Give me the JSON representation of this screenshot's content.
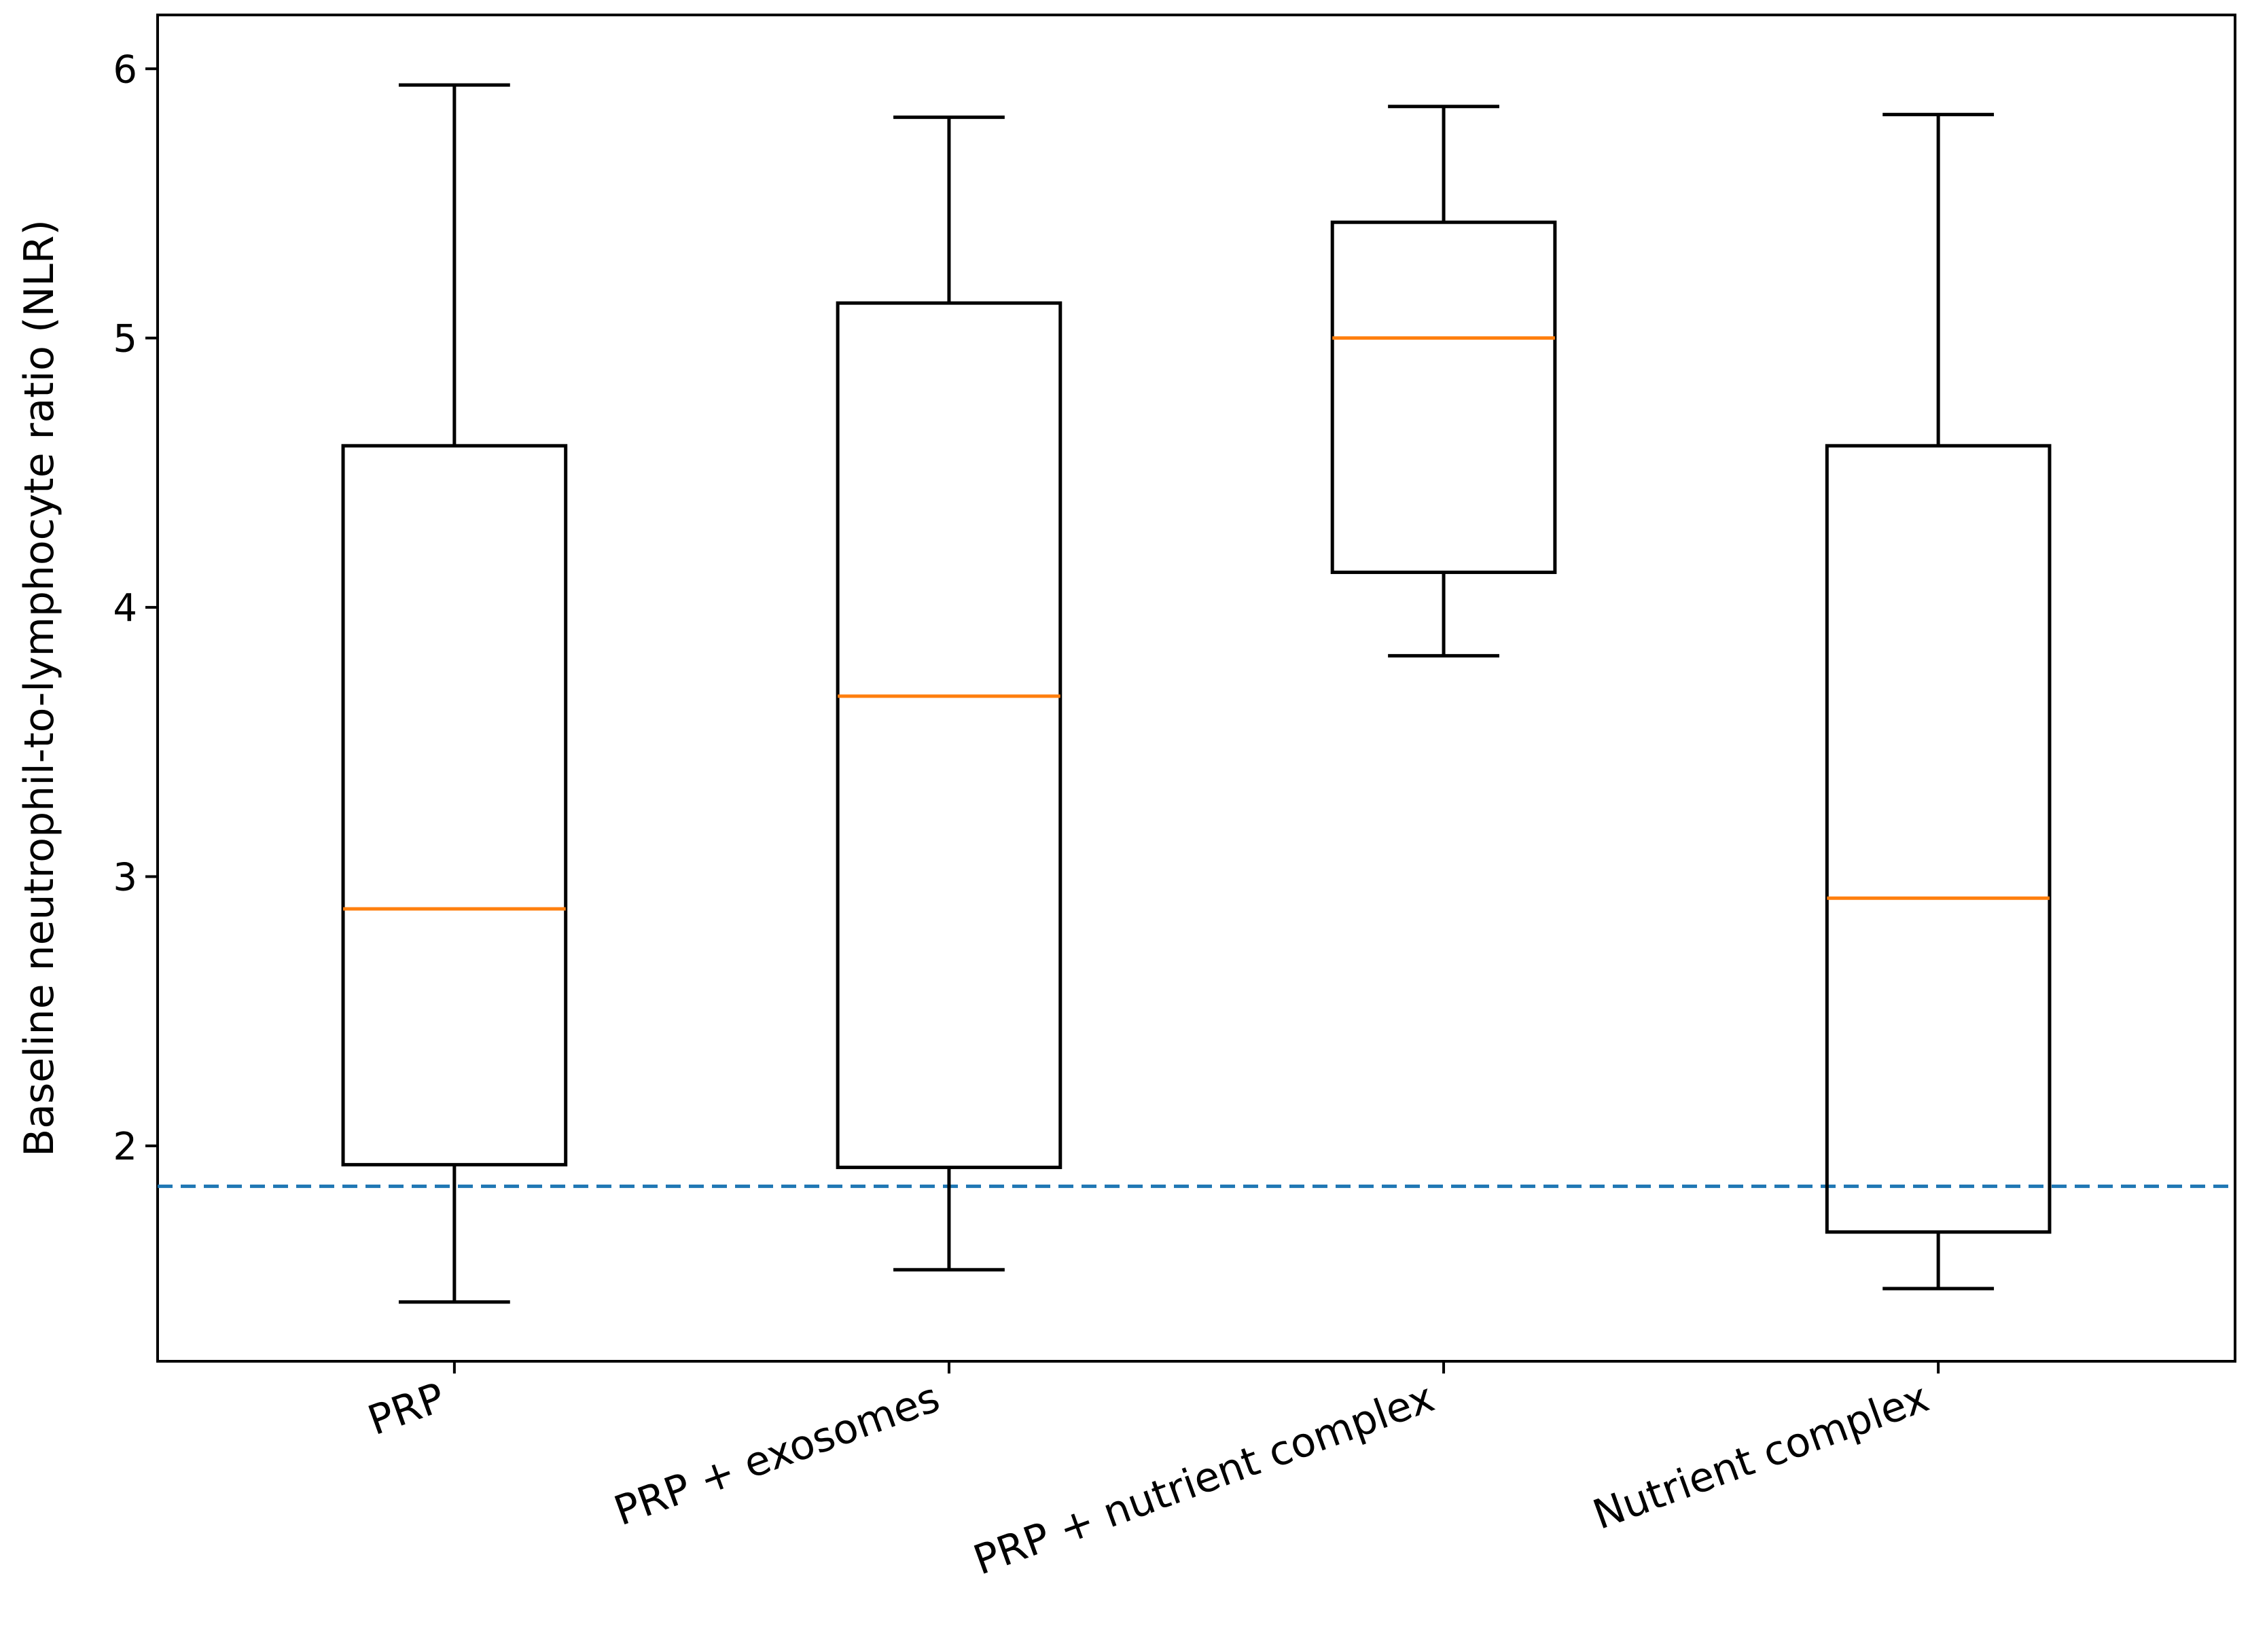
{
  "chart_data": {
    "type": "boxplot",
    "title": "",
    "xlabel": "",
    "ylabel": "Baseline neutrophil-to-lymphocyte ratio (NLR)",
    "ylim": [
      1.2,
      6.2
    ],
    "yticks": [
      2,
      3,
      4,
      5,
      6
    ],
    "grid": false,
    "reference_line": {
      "value": 1.85,
      "style": "dashed",
      "color": "#1f77b4"
    },
    "box_color": "#000000",
    "median_color": "#ff7f0e",
    "categories": [
      "PRP",
      "PRP + exosomes",
      "PRP + nutrient complex",
      "Nutrient complex"
    ],
    "boxes": [
      {
        "label": "PRP",
        "whisker_low": 1.42,
        "q1": 1.93,
        "median": 2.88,
        "q3": 4.6,
        "whisker_high": 5.94
      },
      {
        "label": "PRP + exosomes",
        "whisker_low": 1.54,
        "q1": 1.92,
        "median": 3.67,
        "q3": 5.13,
        "whisker_high": 5.82
      },
      {
        "label": "PRP + nutrient complex",
        "whisker_low": 3.82,
        "q1": 4.13,
        "median": 5.0,
        "q3": 5.43,
        "whisker_high": 5.86
      },
      {
        "label": "Nutrient complex",
        "whisker_low": 1.47,
        "q1": 1.68,
        "median": 2.92,
        "q3": 4.6,
        "whisker_high": 5.83
      }
    ]
  }
}
